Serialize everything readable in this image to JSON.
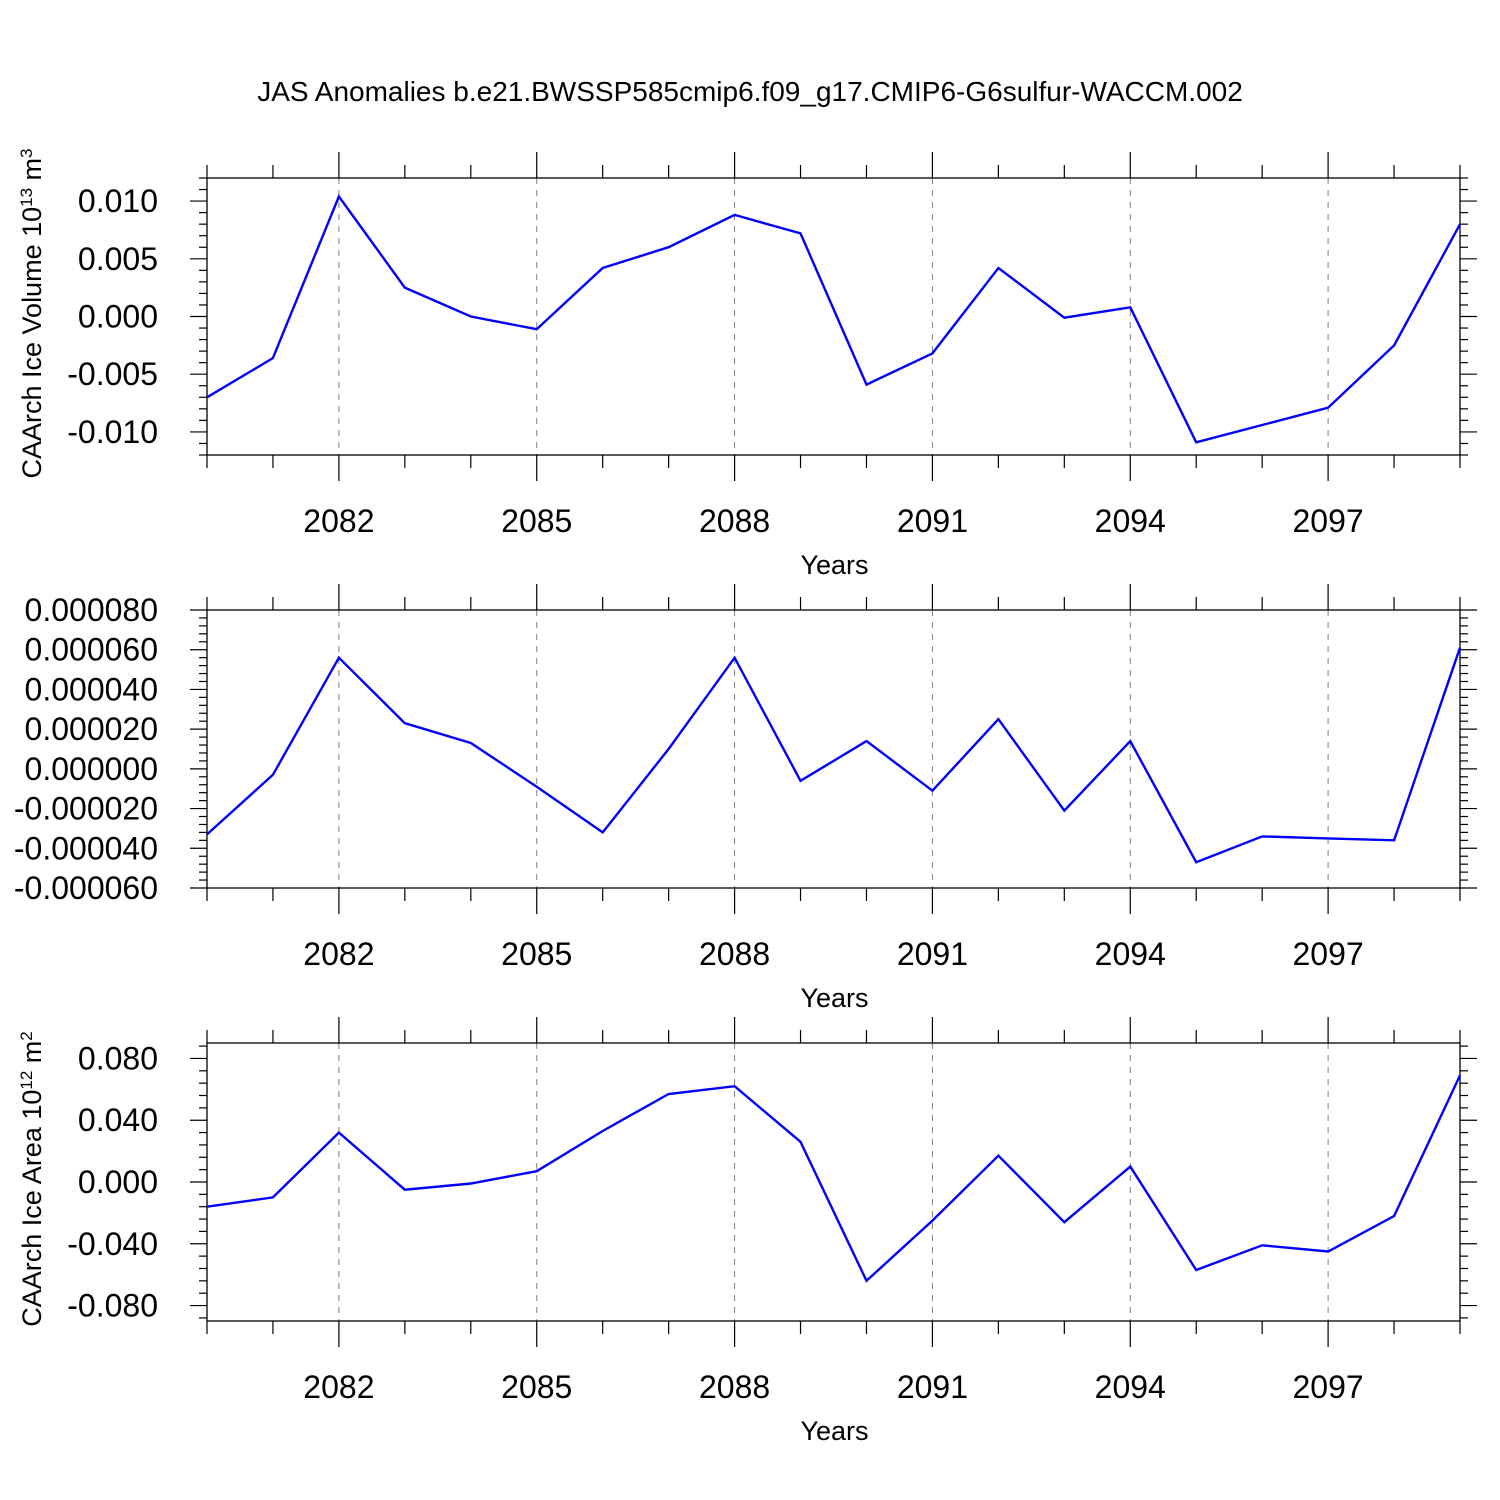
{
  "figure_title": "JAS Anomalies b.e21.BWSSP585cmip6.f09_g17.CMIP6-G6sulfur-WACCM.002",
  "colors": {
    "line": "#0000ff",
    "frame": "#000000",
    "grid": "#808080"
  },
  "chart_data": [
    {
      "type": "line",
      "title": "",
      "xlabel": "Years",
      "ylabel": "CAArch Ice Volume 10",
      "ylabel_sup": "13",
      "ylabel_unit": " m",
      "ylabel_unit_sup": "3",
      "xlim": [
        2080,
        2099
      ],
      "ylim": [
        -0.012,
        0.012
      ],
      "x_ticks": [
        2082,
        2085,
        2088,
        2091,
        2094,
        2097
      ],
      "x_tick_labels": [
        "2082",
        "2085",
        "2088",
        "2091",
        "2094",
        "2097"
      ],
      "y_ticks": [
        0.01,
        0.005,
        0.0,
        -0.005,
        -0.01
      ],
      "y_tick_labels": [
        "0.010",
        "0.005",
        "0.000",
        "-0.005",
        "-0.010"
      ],
      "grid": "vertical dashed at labeled years",
      "x": [
        2080,
        2081,
        2082,
        2083,
        2084,
        2085,
        2086,
        2087,
        2088,
        2089,
        2090,
        2091,
        2092,
        2093,
        2094,
        2095,
        2096,
        2097,
        2098,
        2099
      ],
      "series": [
        {
          "values": [
            -0.007,
            -0.0036,
            0.0104,
            0.0025,
            0.0,
            -0.0011,
            0.0042,
            0.006,
            0.0088,
            0.0072,
            -0.0059,
            -0.0032,
            0.0042,
            -0.0001,
            0.0008,
            -0.0109,
            -0.0094,
            -0.0079,
            -0.0025,
            0.008
          ]
        }
      ]
    },
    {
      "type": "line",
      "title": "",
      "xlabel": "Years",
      "ylabel": "",
      "ylabel_sup": "",
      "ylabel_unit": "",
      "ylabel_unit_sup": "",
      "xlim": [
        2080,
        2099
      ],
      "ylim": [
        -6e-05,
        8e-05
      ],
      "x_ticks": [
        2082,
        2085,
        2088,
        2091,
        2094,
        2097
      ],
      "x_tick_labels": [
        "2082",
        "2085",
        "2088",
        "2091",
        "2094",
        "2097"
      ],
      "y_ticks": [
        8e-05,
        6e-05,
        4e-05,
        2e-05,
        0.0,
        -2e-05,
        -4e-05,
        -6e-05
      ],
      "y_tick_labels": [
        "0.000080",
        "0.000060",
        "0.000040",
        "0.000020",
        "0.000000",
        "-0.000020",
        "-0.000040",
        "-0.000060"
      ],
      "grid": "vertical dashed at labeled years",
      "x": [
        2080,
        2081,
        2082,
        2083,
        2084,
        2085,
        2086,
        2087,
        2088,
        2089,
        2090,
        2091,
        2092,
        2093,
        2094,
        2095,
        2096,
        2097,
        2098,
        2099
      ],
      "series": [
        {
          "values": [
            -3.3e-05,
            -3e-06,
            5.6e-05,
            2.3e-05,
            1.3e-05,
            -9e-06,
            -3.2e-05,
            1e-05,
            5.6e-05,
            -6e-06,
            1.4e-05,
            -1.1e-05,
            2.5e-05,
            -2.1e-05,
            1.4e-05,
            -4.7e-05,
            -3.4e-05,
            -3.5e-05,
            -3.6e-05,
            6.1e-05
          ]
        }
      ]
    },
    {
      "type": "line",
      "title": "",
      "xlabel": "Years",
      "ylabel": "CAArch Ice Area 10",
      "ylabel_sup": "12",
      "ylabel_unit": " m",
      "ylabel_unit_sup": "2",
      "xlim": [
        2080,
        2099
      ],
      "ylim": [
        -0.09,
        0.09
      ],
      "x_ticks": [
        2082,
        2085,
        2088,
        2091,
        2094,
        2097
      ],
      "x_tick_labels": [
        "2082",
        "2085",
        "2088",
        "2091",
        "2094",
        "2097"
      ],
      "y_ticks": [
        0.08,
        0.04,
        0.0,
        -0.04,
        -0.08
      ],
      "y_tick_labels": [
        "0.080",
        "0.040",
        "0.000",
        "-0.040",
        "-0.080"
      ],
      "grid": "vertical dashed at labeled years",
      "x": [
        2080,
        2081,
        2082,
        2083,
        2084,
        2085,
        2086,
        2087,
        2088,
        2089,
        2090,
        2091,
        2092,
        2093,
        2094,
        2095,
        2096,
        2097,
        2098,
        2099
      ],
      "series": [
        {
          "values": [
            -0.016,
            -0.01,
            0.032,
            -0.005,
            -0.001,
            0.007,
            0.033,
            0.057,
            0.062,
            0.026,
            -0.064,
            -0.025,
            0.017,
            -0.026,
            0.01,
            -0.057,
            -0.041,
            -0.045,
            -0.022,
            0.069
          ]
        }
      ]
    }
  ]
}
